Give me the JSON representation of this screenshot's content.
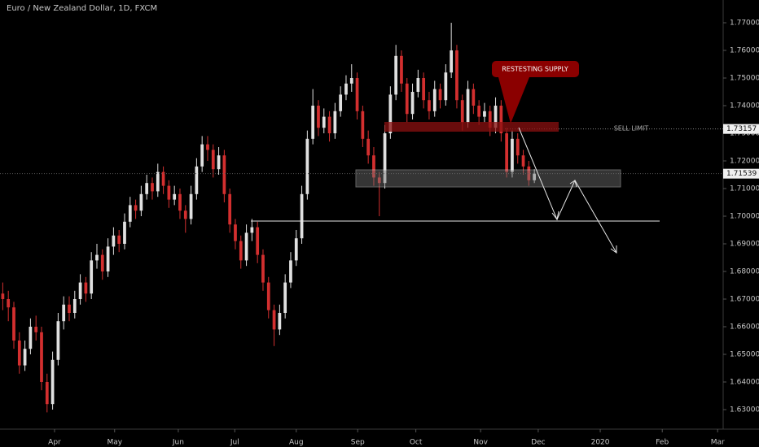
{
  "chart_data": {
    "type": "candlestick",
    "title": "Euro / New Zealand Dollar, 1D, FXCM",
    "up_color": "#e0e0e0",
    "down_color": "#d32f2f",
    "candles": [
      [
        1.672,
        1.676,
        1.666,
        1.67
      ],
      [
        1.67,
        1.673,
        1.662,
        1.667
      ],
      [
        1.667,
        1.669,
        1.652,
        1.655
      ],
      [
        1.655,
        1.658,
        1.643,
        1.646
      ],
      [
        1.646,
        1.655,
        1.644,
        1.652
      ],
      [
        1.652,
        1.663,
        1.65,
        1.66
      ],
      [
        1.66,
        1.664,
        1.655,
        1.658
      ],
      [
        1.658,
        1.66,
        1.637,
        1.64
      ],
      [
        1.64,
        1.643,
        1.629,
        1.632
      ],
      [
        1.632,
        1.651,
        1.63,
        1.648
      ],
      [
        1.648,
        1.665,
        1.646,
        1.662
      ],
      [
        1.662,
        1.671,
        1.659,
        1.668
      ],
      [
        1.668,
        1.671,
        1.662,
        1.665
      ],
      [
        1.665,
        1.673,
        1.663,
        1.67
      ],
      [
        1.67,
        1.679,
        1.668,
        1.676
      ],
      [
        1.676,
        1.678,
        1.669,
        1.672
      ],
      [
        1.672,
        1.687,
        1.67,
        1.684
      ],
      [
        1.684,
        1.69,
        1.681,
        1.686
      ],
      [
        1.686,
        1.688,
        1.677,
        1.68
      ],
      [
        1.68,
        1.692,
        1.678,
        1.689
      ],
      [
        1.689,
        1.696,
        1.686,
        1.693
      ],
      [
        1.693,
        1.695,
        1.687,
        1.69
      ],
      [
        1.69,
        1.701,
        1.688,
        1.698
      ],
      [
        1.698,
        1.707,
        1.696,
        1.704
      ],
      [
        1.704,
        1.706,
        1.699,
        1.702
      ],
      [
        1.702,
        1.711,
        1.7,
        1.708
      ],
      [
        1.708,
        1.715,
        1.706,
        1.712
      ],
      [
        1.712,
        1.714,
        1.706,
        1.709
      ],
      [
        1.709,
        1.719,
        1.707,
        1.716
      ],
      [
        1.716,
        1.718,
        1.708,
        1.711
      ],
      [
        1.711,
        1.713,
        1.703,
        1.706
      ],
      [
        1.706,
        1.711,
        1.704,
        1.708
      ],
      [
        1.708,
        1.71,
        1.699,
        1.702
      ],
      [
        1.702,
        1.704,
        1.694,
        1.699
      ],
      [
        1.699,
        1.711,
        1.697,
        1.708
      ],
      [
        1.708,
        1.721,
        1.706,
        1.718
      ],
      [
        1.718,
        1.729,
        1.716,
        1.726
      ],
      [
        1.726,
        1.729,
        1.72,
        1.724
      ],
      [
        1.724,
        1.726,
        1.714,
        1.717
      ],
      [
        1.717,
        1.725,
        1.715,
        1.722
      ],
      [
        1.722,
        1.724,
        1.705,
        1.708
      ],
      [
        1.708,
        1.71,
        1.694,
        1.697
      ],
      [
        1.697,
        1.699,
        1.688,
        1.691
      ],
      [
        1.691,
        1.693,
        1.681,
        1.684
      ],
      [
        1.684,
        1.697,
        1.682,
        1.694
      ],
      [
        1.694,
        1.699,
        1.691,
        1.696
      ],
      [
        1.696,
        1.698,
        1.683,
        1.686
      ],
      [
        1.686,
        1.688,
        1.673,
        1.676
      ],
      [
        1.676,
        1.678,
        1.663,
        1.666
      ],
      [
        1.666,
        1.668,
        1.653,
        1.659
      ],
      [
        1.659,
        1.668,
        1.657,
        1.665
      ],
      [
        1.665,
        1.679,
        1.663,
        1.676
      ],
      [
        1.676,
        1.687,
        1.674,
        1.684
      ],
      [
        1.684,
        1.695,
        1.682,
        1.692
      ],
      [
        1.692,
        1.711,
        1.69,
        1.708
      ],
      [
        1.708,
        1.731,
        1.706,
        1.728
      ],
      [
        1.728,
        1.746,
        1.726,
        1.74
      ],
      [
        1.74,
        1.742,
        1.729,
        1.732
      ],
      [
        1.732,
        1.739,
        1.73,
        1.736
      ],
      [
        1.736,
        1.738,
        1.727,
        1.73
      ],
      [
        1.73,
        1.741,
        1.728,
        1.738
      ],
      [
        1.738,
        1.747,
        1.736,
        1.744
      ],
      [
        1.744,
        1.751,
        1.742,
        1.748
      ],
      [
        1.748,
        1.755,
        1.745,
        1.75
      ],
      [
        1.75,
        1.752,
        1.735,
        1.738
      ],
      [
        1.738,
        1.74,
        1.725,
        1.728
      ],
      [
        1.728,
        1.731,
        1.719,
        1.722
      ],
      [
        1.722,
        1.725,
        1.711,
        1.714
      ],
      [
        1.714,
        1.716,
        1.7,
        1.712
      ],
      [
        1.712,
        1.733,
        1.71,
        1.73
      ],
      [
        1.73,
        1.747,
        1.728,
        1.744
      ],
      [
        1.744,
        1.762,
        1.742,
        1.758
      ],
      [
        1.758,
        1.76,
        1.745,
        1.748
      ],
      [
        1.748,
        1.75,
        1.734,
        1.737
      ],
      [
        1.737,
        1.748,
        1.735,
        1.745
      ],
      [
        1.745,
        1.753,
        1.743,
        1.75
      ],
      [
        1.75,
        1.752,
        1.739,
        1.742
      ],
      [
        1.742,
        1.745,
        1.735,
        1.738
      ],
      [
        1.738,
        1.749,
        1.736,
        1.746
      ],
      [
        1.746,
        1.748,
        1.739,
        1.742
      ],
      [
        1.742,
        1.755,
        1.74,
        1.752
      ],
      [
        1.752,
        1.77,
        1.75,
        1.76
      ],
      [
        1.76,
        1.762,
        1.739,
        1.742
      ],
      [
        1.742,
        1.744,
        1.731,
        1.734
      ],
      [
        1.734,
        1.749,
        1.732,
        1.746
      ],
      [
        1.746,
        1.748,
        1.737,
        1.74
      ],
      [
        1.74,
        1.742,
        1.733,
        1.736
      ],
      [
        1.736,
        1.741,
        1.734,
        1.738
      ],
      [
        1.738,
        1.74,
        1.729,
        1.732
      ],
      [
        1.732,
        1.743,
        1.73,
        1.74
      ],
      [
        1.74,
        1.742,
        1.727,
        1.73
      ],
      [
        1.73,
        1.732,
        1.714,
        1.716
      ],
      [
        1.716,
        1.731,
        1.714,
        1.728
      ],
      [
        1.728,
        1.73,
        1.719,
        1.722
      ],
      [
        1.722,
        1.724,
        1.715,
        1.718
      ],
      [
        1.718,
        1.72,
        1.711,
        1.713
      ],
      [
        1.713,
        1.717,
        1.712,
        1.7154
      ]
    ],
    "xlim": [
      -0.5,
      130.1
    ],
    "xticks": [
      {
        "value": 9.35,
        "label": "Apr"
      },
      {
        "value": 20.2,
        "label": "May"
      },
      {
        "value": 31.7,
        "label": "Jun"
      },
      {
        "value": 41.9,
        "label": "Jul"
      },
      {
        "value": 53.0,
        "label": "Aug"
      },
      {
        "value": 64.1,
        "label": "Sep"
      },
      {
        "value": 74.6,
        "label": "Oct"
      },
      {
        "value": 86.3,
        "label": "Nov"
      },
      {
        "value": 96.7,
        "label": "Dec"
      },
      {
        "value": 107.9,
        "label": "2020"
      },
      {
        "value": 119.1,
        "label": "Feb"
      },
      {
        "value": 129.1,
        "label": "Mar"
      }
    ],
    "ylim": [
      1.62382,
      1.77824
    ],
    "yticks": [
      {
        "value": 1.63,
        "label": "1.63000"
      },
      {
        "value": 1.64,
        "label": "1.64000"
      },
      {
        "value": 1.65,
        "label": "1.65000"
      },
      {
        "value": 1.66,
        "label": "1.66000"
      },
      {
        "value": 1.67,
        "label": "1.67000"
      },
      {
        "value": 1.68,
        "label": "1.68000"
      },
      {
        "value": 1.69,
        "label": "1.69000"
      },
      {
        "value": 1.7,
        "label": "1.70000"
      },
      {
        "value": 1.71,
        "label": "1.71000"
      },
      {
        "value": 1.72,
        "label": "1.72000"
      },
      {
        "value": 1.73,
        "label": "1.73000"
      },
      {
        "value": 1.74,
        "label": "1.74000"
      },
      {
        "value": 1.75,
        "label": "1.75000"
      },
      {
        "value": 1.76,
        "label": "1.76000"
      },
      {
        "value": 1.77,
        "label": "1.77000"
      }
    ],
    "price_labels": [
      1.73157,
      1.71539
    ],
    "annotations": [
      "RESTESTING SUPPLY",
      "SELL LIMIT"
    ]
  }
}
